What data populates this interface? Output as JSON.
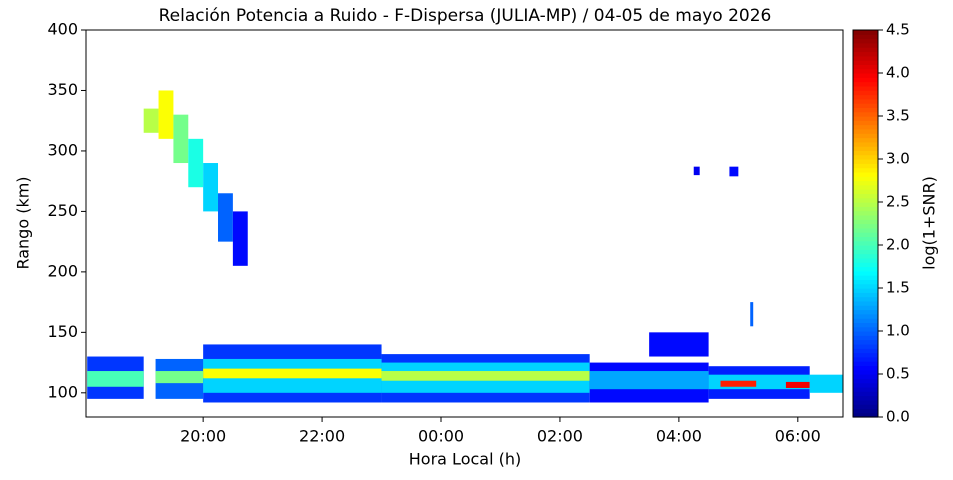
{
  "chart_data": {
    "type": "heatmap",
    "title": "Relación Potencia a Ruido - F-Dispersa (JULIA-MP) / 04-05 de mayo 2026",
    "x_label": "Hora Local (h)",
    "y_label": "Rango (km)",
    "colorbar_label": "log(1+SNR)",
    "colormap": "jet",
    "xlim": [
      18.03,
      30.76
    ],
    "xticks": [
      {
        "value": 20,
        "label": "20:00"
      },
      {
        "value": 22,
        "label": "22:00"
      },
      {
        "value": 24,
        "label": "00:00"
      },
      {
        "value": 26,
        "label": "02:00"
      },
      {
        "value": 28,
        "label": "04:00"
      },
      {
        "value": 30,
        "label": "06:00"
      }
    ],
    "ylim": [
      80,
      400
    ],
    "yticks": [
      100,
      150,
      200,
      250,
      300,
      350,
      400
    ],
    "clim": [
      0.0,
      4.5
    ],
    "cticks": [
      {
        "value": 0,
        "label": "0.0"
      },
      {
        "value": 0.5,
        "label": "0.5"
      },
      {
        "value": 1,
        "label": "1.0"
      },
      {
        "value": 1.5,
        "label": "1.5"
      },
      {
        "value": 2,
        "label": "2.0"
      },
      {
        "value": 2.5,
        "label": "2.5"
      },
      {
        "value": 3,
        "label": "3.0"
      },
      {
        "value": 3.5,
        "label": "3.5"
      },
      {
        "value": 4,
        "label": "4.0"
      },
      {
        "value": 4.5,
        "label": "4.5"
      }
    ],
    "cells": [
      {
        "x": [
          19.0,
          19.25
        ],
        "y": [
          315,
          335
        ],
        "value": 2.5
      },
      {
        "x": [
          19.25,
          19.5
        ],
        "y": [
          310,
          350
        ],
        "value": 2.8
      },
      {
        "x": [
          19.5,
          19.75
        ],
        "y": [
          290,
          330
        ],
        "value": 2.2
      },
      {
        "x": [
          19.75,
          20.0
        ],
        "y": [
          270,
          310
        ],
        "value": 1.8
      },
      {
        "x": [
          20.0,
          20.25
        ],
        "y": [
          250,
          290
        ],
        "value": 1.5
      },
      {
        "x": [
          20.25,
          20.5
        ],
        "y": [
          225,
          265
        ],
        "value": 1.0
      },
      {
        "x": [
          20.5,
          20.75
        ],
        "y": [
          205,
          250
        ],
        "value": 0.6
      },
      {
        "x": [
          28.25,
          28.35
        ],
        "y": [
          280,
          287
        ],
        "value": 0.5
      },
      {
        "x": [
          28.85,
          29.0
        ],
        "y": [
          279,
          287
        ],
        "value": 0.6
      },
      {
        "x": [
          18.05,
          19.0
        ],
        "y": [
          95,
          130
        ],
        "value": 0.8
      },
      {
        "x": [
          18.05,
          19.0
        ],
        "y": [
          105,
          118
        ],
        "value": 2.0
      },
      {
        "x": [
          19.2,
          20.0
        ],
        "y": [
          95,
          128
        ],
        "value": 1.0
      },
      {
        "x": [
          19.2,
          20.0
        ],
        "y": [
          108,
          118
        ],
        "value": 2.2
      },
      {
        "x": [
          20.0,
          23.0
        ],
        "y": [
          92,
          140
        ],
        "value": 0.8
      },
      {
        "x": [
          20.0,
          23.0
        ],
        "y": [
          100,
          128
        ],
        "value": 1.5
      },
      {
        "x": [
          20.0,
          23.0
        ],
        "y": [
          112,
          120
        ],
        "value": 2.8
      },
      {
        "x": [
          23.0,
          26.5
        ],
        "y": [
          92,
          132
        ],
        "value": 0.8
      },
      {
        "x": [
          23.0,
          26.5
        ],
        "y": [
          100,
          125
        ],
        "value": 1.5
      },
      {
        "x": [
          23.0,
          26.5
        ],
        "y": [
          110,
          118
        ],
        "value": 2.5
      },
      {
        "x": [
          26.5,
          28.5
        ],
        "y": [
          92,
          125
        ],
        "value": 0.6
      },
      {
        "x": [
          26.5,
          28.5
        ],
        "y": [
          103,
          118
        ],
        "value": 1.3
      },
      {
        "x": [
          27.5,
          28.5
        ],
        "y": [
          130,
          150
        ],
        "value": 0.6
      },
      {
        "x": [
          28.5,
          30.2
        ],
        "y": [
          95,
          122
        ],
        "value": 0.7
      },
      {
        "x": [
          28.5,
          30.2
        ],
        "y": [
          103,
          115
        ],
        "value": 1.5
      },
      {
        "x": [
          28.7,
          29.3
        ],
        "y": [
          105,
          110
        ],
        "value": 3.8
      },
      {
        "x": [
          29.8,
          30.2
        ],
        "y": [
          104,
          109
        ],
        "value": 4.0
      },
      {
        "x": [
          30.2,
          30.76
        ],
        "y": [
          100,
          115
        ],
        "value": 1.5
      },
      {
        "x": [
          29.2,
          29.25
        ],
        "y": [
          155,
          175
        ],
        "value": 1.0
      }
    ]
  }
}
